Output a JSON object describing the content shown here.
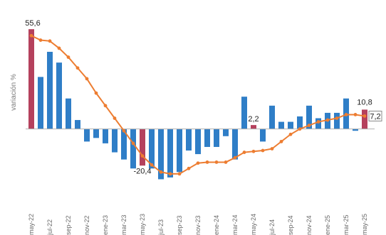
{
  "chart_data": {
    "type": "bar",
    "title": "",
    "ylabel": "variación %",
    "ylim": [
      -29,
      60
    ],
    "grid": false,
    "months": [
      "may-22",
      "jun-22",
      "jul-22",
      "ago-22",
      "sep-22",
      "oct-22",
      "nov-22",
      "dic-22",
      "ene-23",
      "feb-23",
      "mar-23",
      "abr-23",
      "may-23",
      "jun-23",
      "jul-23",
      "ago-23",
      "sep-23",
      "oct-23",
      "nov-23",
      "dic-23",
      "ene-24",
      "feb-24",
      "mar-24",
      "abr-24",
      "may-24",
      "jun-24",
      "jul-24",
      "ago-24",
      "sep-24",
      "oct-24",
      "nov-24",
      "dic-24",
      "ene-25",
      "feb-25",
      "mar-25",
      "abr-25",
      "may-25"
    ],
    "x_tick_labels": [
      "may-22",
      "jul-22",
      "sep-22",
      "nov-22",
      "ene-23",
      "mar-23",
      "may-23",
      "jul-23",
      "sep-23",
      "nov-23",
      "ene-24",
      "mar-24",
      "may-24",
      "jul-24",
      "sep-24",
      "nov-24",
      "ene-25",
      "mar-25",
      "may-25"
    ],
    "series": [
      {
        "type": "bar",
        "color": "#2f7ec7",
        "highlight_color": "#b5415d",
        "highlight_indices": [
          0,
          12,
          24,
          36
        ],
        "values": [
          55.6,
          29,
          43,
          37,
          17,
          5,
          -7,
          -5,
          -8,
          -13,
          -17,
          -22,
          -20.4,
          -22,
          -28,
          -27,
          -24,
          -12,
          -14,
          -10,
          -10,
          -4,
          -17,
          18,
          2.2,
          -7,
          13,
          4,
          4,
          7,
          13,
          6,
          9,
          9,
          17,
          -1,
          10.8
        ]
      },
      {
        "type": "line",
        "color": "#ed7d31",
        "values": [
          52,
          49.5,
          49,
          45,
          40,
          34,
          28,
          20,
          13,
          6,
          -1,
          -8,
          -15,
          -20,
          -24,
          -25,
          -25,
          -22,
          -19,
          -18.5,
          -18.5,
          -18.5,
          -16,
          -13,
          -12.5,
          -12,
          -11,
          -7,
          -3,
          0,
          2,
          4,
          5,
          6,
          8,
          8,
          7.2
        ]
      }
    ],
    "annotations": [
      {
        "index": 0,
        "text": "55,6"
      },
      {
        "index": 12,
        "text": "-20,4"
      },
      {
        "index": 24,
        "text": "2,2"
      },
      {
        "index": 36,
        "text": "10,8"
      },
      {
        "index": 36,
        "text": "7,2",
        "boxed": true
      }
    ]
  }
}
